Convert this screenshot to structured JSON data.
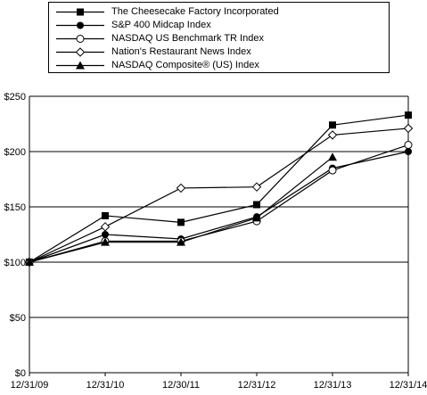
{
  "chart_data": {
    "type": "line",
    "x": [
      "12/31/09",
      "12/31/10",
      "12/30/11",
      "12/31/12",
      "12/31/13",
      "12/31/14"
    ],
    "y_ticks": [
      "$0",
      "$50",
      "$100",
      "$150",
      "$200",
      "$250"
    ],
    "ylim": [
      0,
      250
    ],
    "grid": "horizontal",
    "legend": "top",
    "series": [
      {
        "name": "The Cheesecake Factory Incorporated",
        "marker": "square-filled",
        "values": [
          100,
          142,
          136,
          152,
          224,
          233
        ]
      },
      {
        "name": "S&P 400 Midcap Index",
        "marker": "circle-filled",
        "values": [
          100,
          125,
          121,
          141,
          185,
          200
        ]
      },
      {
        "name": "NASDAQ US Benchmark TR Index",
        "marker": "circle-open",
        "values": [
          100,
          119,
          119,
          137,
          183,
          206
        ]
      },
      {
        "name": "Nation's Restaurant News Index",
        "marker": "diamond-open",
        "values": [
          100,
          132,
          167,
          168,
          215,
          221
        ]
      },
      {
        "name": "NASDAQ Composite® (US) Index",
        "marker": "triangle-filled",
        "values": [
          100,
          118,
          118,
          140,
          195,
          null
        ]
      }
    ]
  }
}
